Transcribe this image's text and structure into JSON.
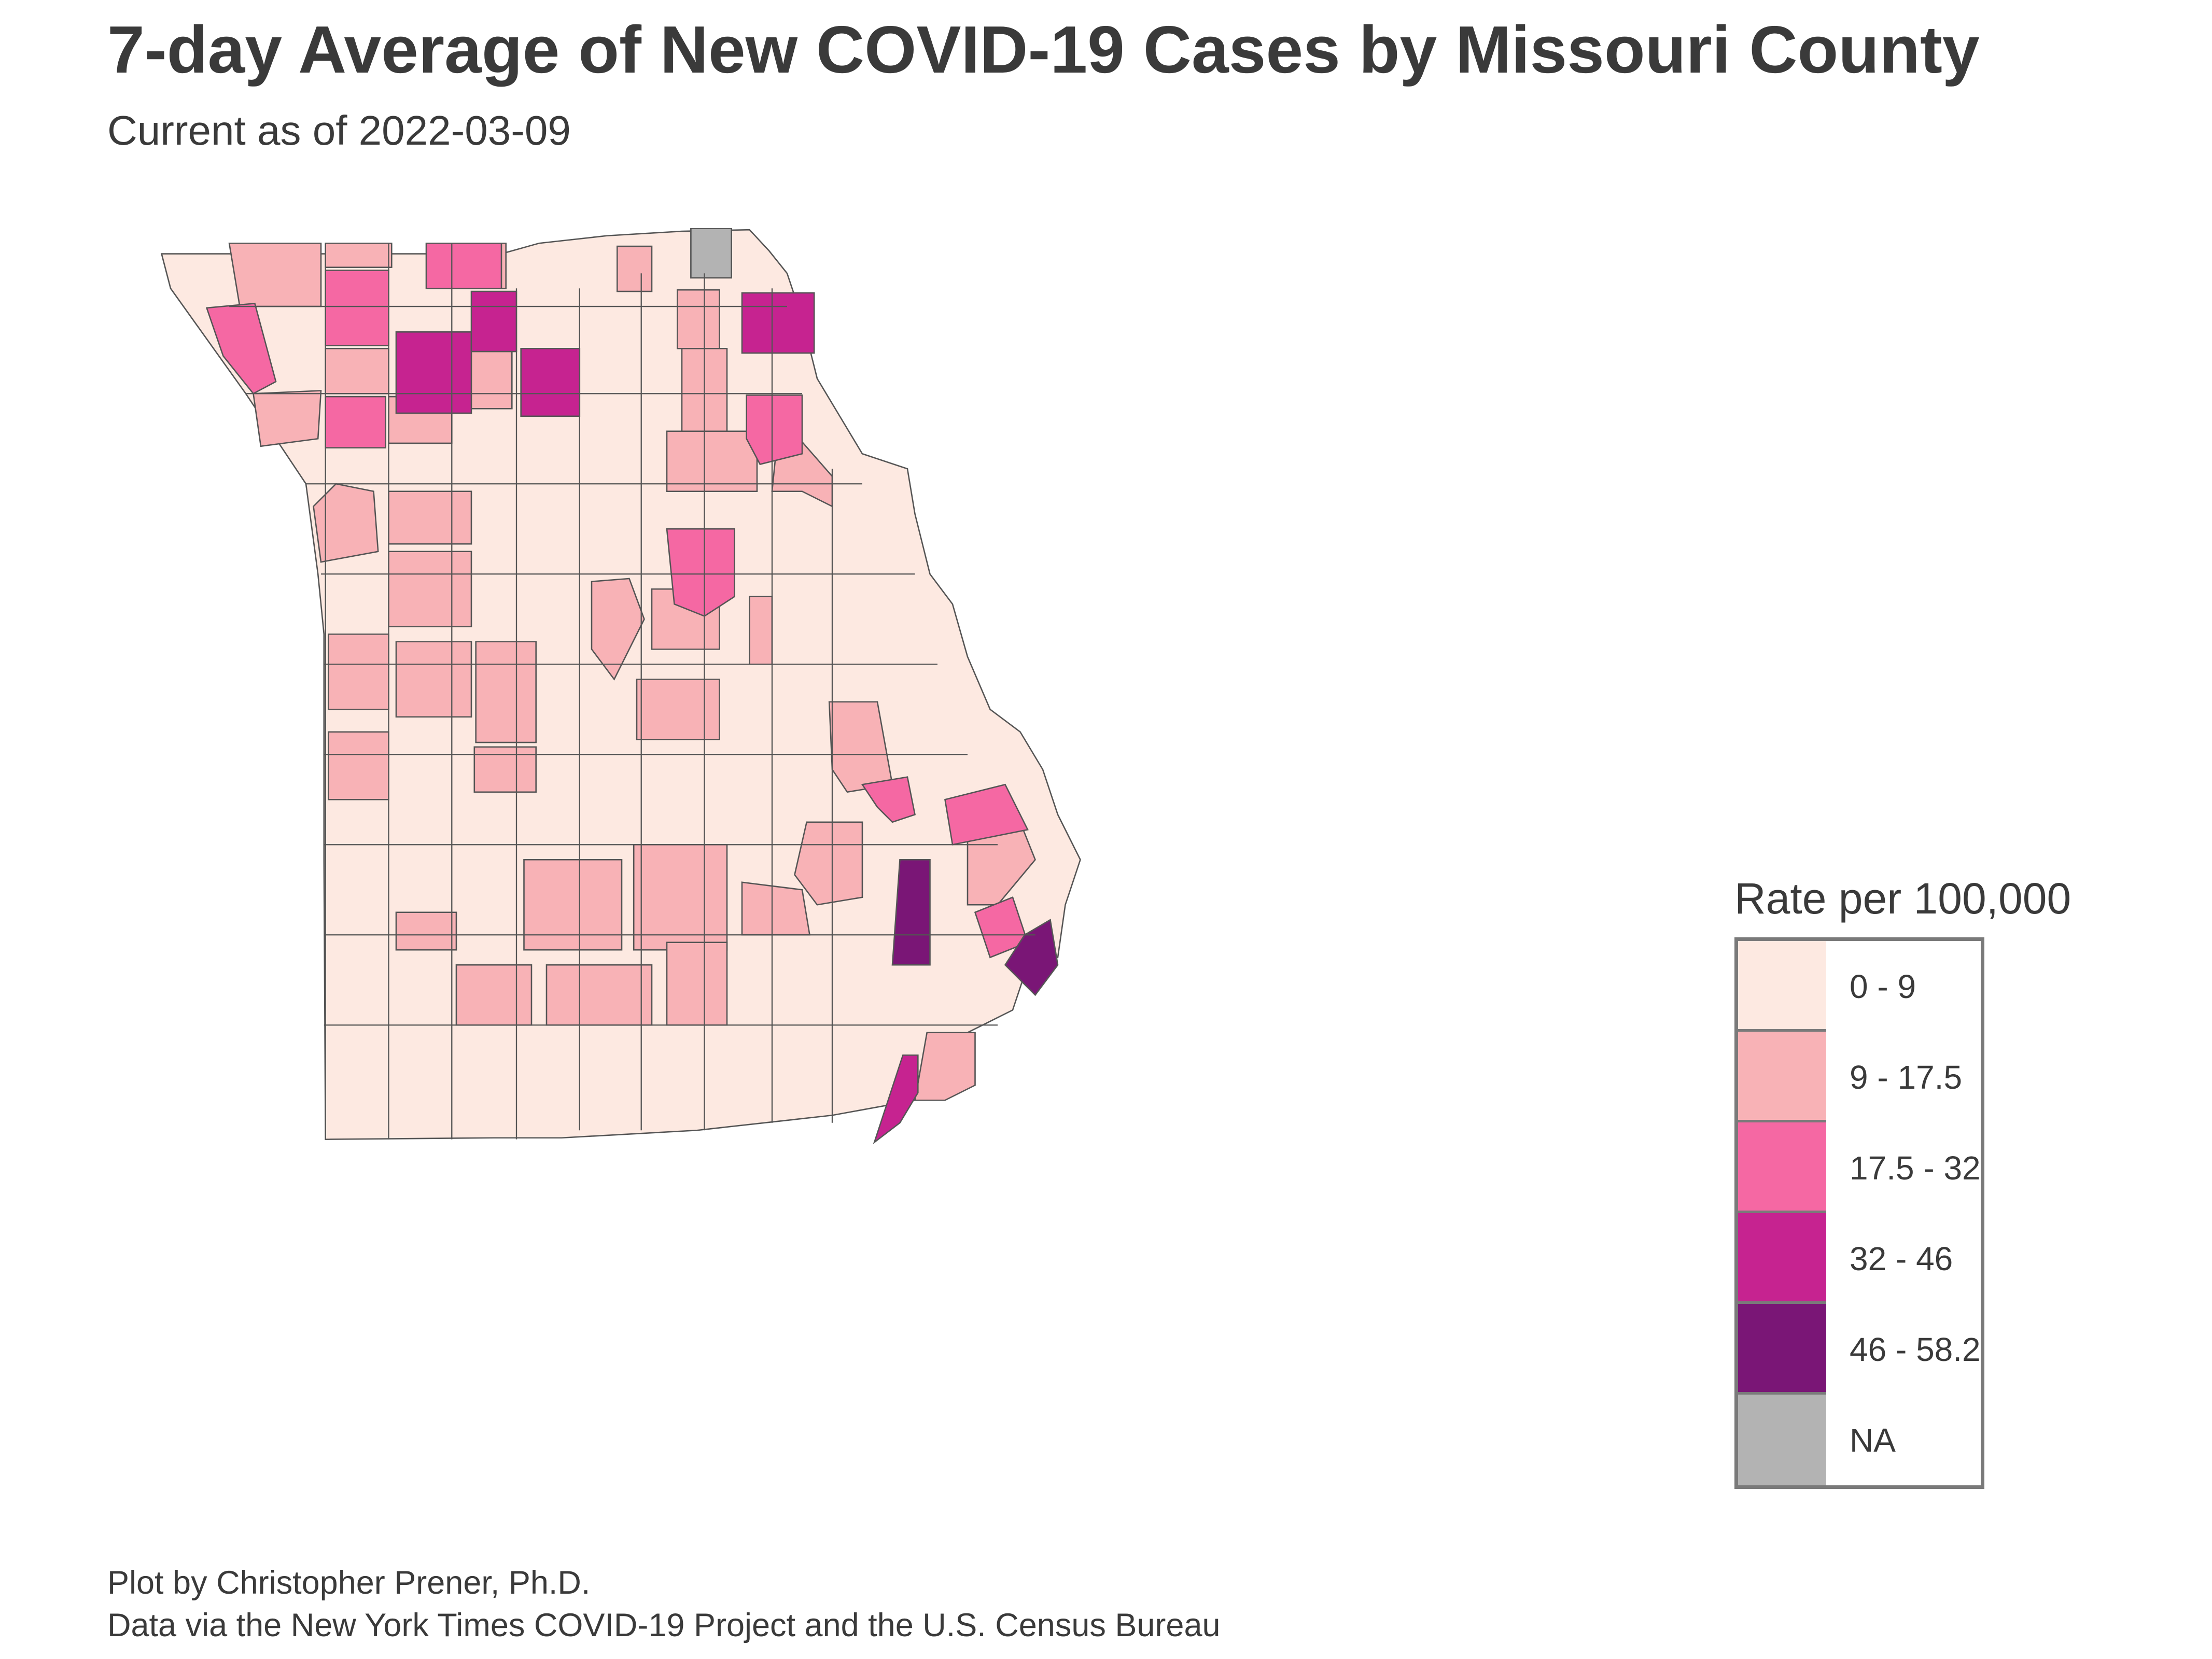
{
  "title": "7-day Average of New COVID-19 Cases by Missouri County",
  "subtitle": "Current as of 2022-03-09",
  "legend": {
    "title": "Rate per 100,000",
    "items": [
      {
        "label": "0 - 9",
        "color": "#fde9e1"
      },
      {
        "label": "9 - 17.5",
        "color": "#f8b2b6"
      },
      {
        "label": "17.5 - 32",
        "color": "#f568a3"
      },
      {
        "label": "32 - 46",
        "color": "#c62390"
      },
      {
        "label": "46 - 58.2",
        "color": "#7a1676"
      },
      {
        "label": "NA",
        "color": "#b3b3b3"
      }
    ]
  },
  "caption": {
    "line1": "Plot by Christopher Prener, Ph.D.",
    "line2": "Data via the New York Times COVID-19 Project and the U.S. Census Bureau"
  },
  "map": {
    "border_color": "#555555"
  }
}
